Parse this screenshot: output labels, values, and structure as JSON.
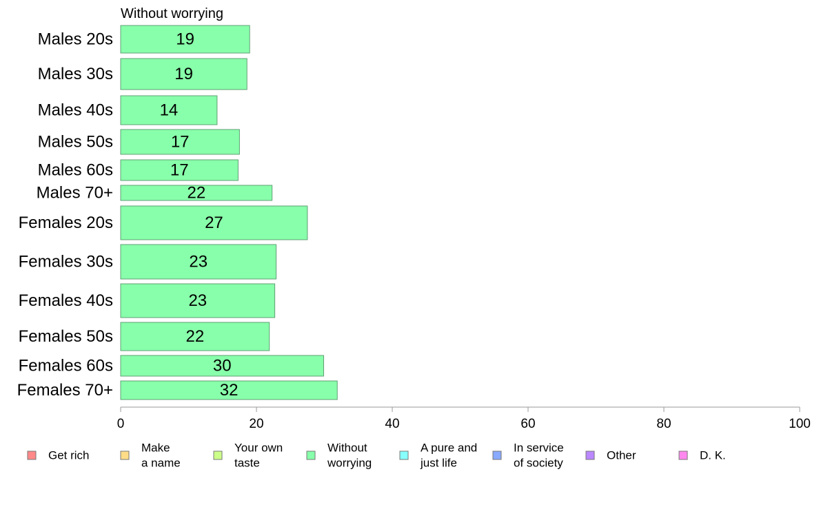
{
  "chart_data": {
    "type": "bar",
    "orientation": "horizontal",
    "title": "Without worrying",
    "categories": [
      "Males 20s",
      "Males 30s",
      "Males 40s",
      "Males 50s",
      "Males 60s",
      "Males 70+",
      "Females 20s",
      "Females 30s",
      "Females 40s",
      "Females 50s",
      "Females 60s",
      "Females 70+"
    ],
    "series": [
      {
        "name": "Without worrying",
        "color": "#88ffaa",
        "values": [
          19,
          18.6,
          14.2,
          17.5,
          17.3,
          22.3,
          27.5,
          22.9,
          22.7,
          21.9,
          29.9,
          31.9
        ],
        "labels": [
          "19",
          "19",
          "14",
          "17",
          "17",
          "22",
          "27",
          "23",
          "23",
          "22",
          "30",
          "32"
        ]
      }
    ],
    "xlim": [
      0,
      100
    ],
    "xticks": [
      "0",
      "20",
      "40",
      "60",
      "80",
      "100"
    ],
    "legend": {
      "placement": "bottom",
      "items": [
        {
          "lines": [
            "Get rich"
          ],
          "color": "#ff8888"
        },
        {
          "lines": [
            "Make",
            "a name"
          ],
          "color": "#ffdd88"
        },
        {
          "lines": [
            "Your own",
            "taste"
          ],
          "color": "#ccff88"
        },
        {
          "lines": [
            "Without",
            "worrying"
          ],
          "color": "#88ffaa"
        },
        {
          "lines": [
            "A pure and",
            "just life"
          ],
          "color": "#88ffff"
        },
        {
          "lines": [
            "In service",
            "of society"
          ],
          "color": "#88aaff"
        },
        {
          "lines": [
            "Other"
          ],
          "color": "#bb88ff"
        },
        {
          "lines": [
            "D. K."
          ],
          "color": "#ff88ee"
        }
      ]
    }
  }
}
